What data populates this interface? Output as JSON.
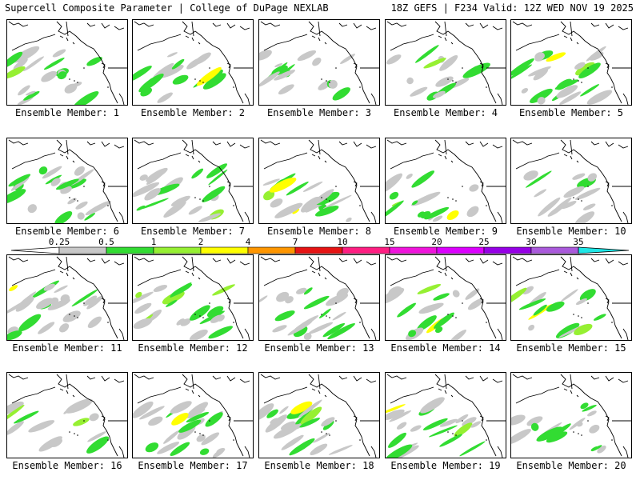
{
  "header": {
    "left": "Supercell Composite Parameter | College of DuPage NEXLAB",
    "right": "18Z GEFS | F234 Valid: 12Z WED NOV 19 2025"
  },
  "member_label_prefix": "Ensemble Member:",
  "members": [
    {
      "label": "Ensemble Member: 1"
    },
    {
      "label": "Ensemble Member: 2"
    },
    {
      "label": "Ensemble Member: 3"
    },
    {
      "label": "Ensemble Member: 4"
    },
    {
      "label": "Ensemble Member: 5"
    },
    {
      "label": "Ensemble Member: 6"
    },
    {
      "label": "Ensemble Member: 7"
    },
    {
      "label": "Ensemble Member: 8"
    },
    {
      "label": "Ensemble Member: 9"
    },
    {
      "label": "Ensemble Member: 10"
    },
    {
      "label": "Ensemble Member: 11"
    },
    {
      "label": "Ensemble Member: 12"
    },
    {
      "label": "Ensemble Member: 13"
    },
    {
      "label": "Ensemble Member: 14"
    },
    {
      "label": "Ensemble Member: 15"
    },
    {
      "label": "Ensemble Member: 16"
    },
    {
      "label": "Ensemble Member: 17"
    },
    {
      "label": "Ensemble Member: 18"
    },
    {
      "label": "Ensemble Member: 19"
    },
    {
      "label": "Ensemble Member: 20"
    }
  ],
  "colorbar": {
    "thresholds": [
      "0.25",
      "0.5",
      "1",
      "2",
      "4",
      "7",
      "10",
      "15",
      "20",
      "25",
      "30",
      "35"
    ],
    "colors": [
      "#c8c8c8",
      "#32dc32",
      "#96f032",
      "#ffff00",
      "#ff9600",
      "#e61414",
      "#ff1e82",
      "#f014dc",
      "#dc00ff",
      "#9600e6",
      "#aa5adc",
      "#1ee6e6"
    ]
  },
  "map": {
    "land": "#ffffff",
    "ocean": "#ffffff",
    "coast": "#000000"
  }
}
